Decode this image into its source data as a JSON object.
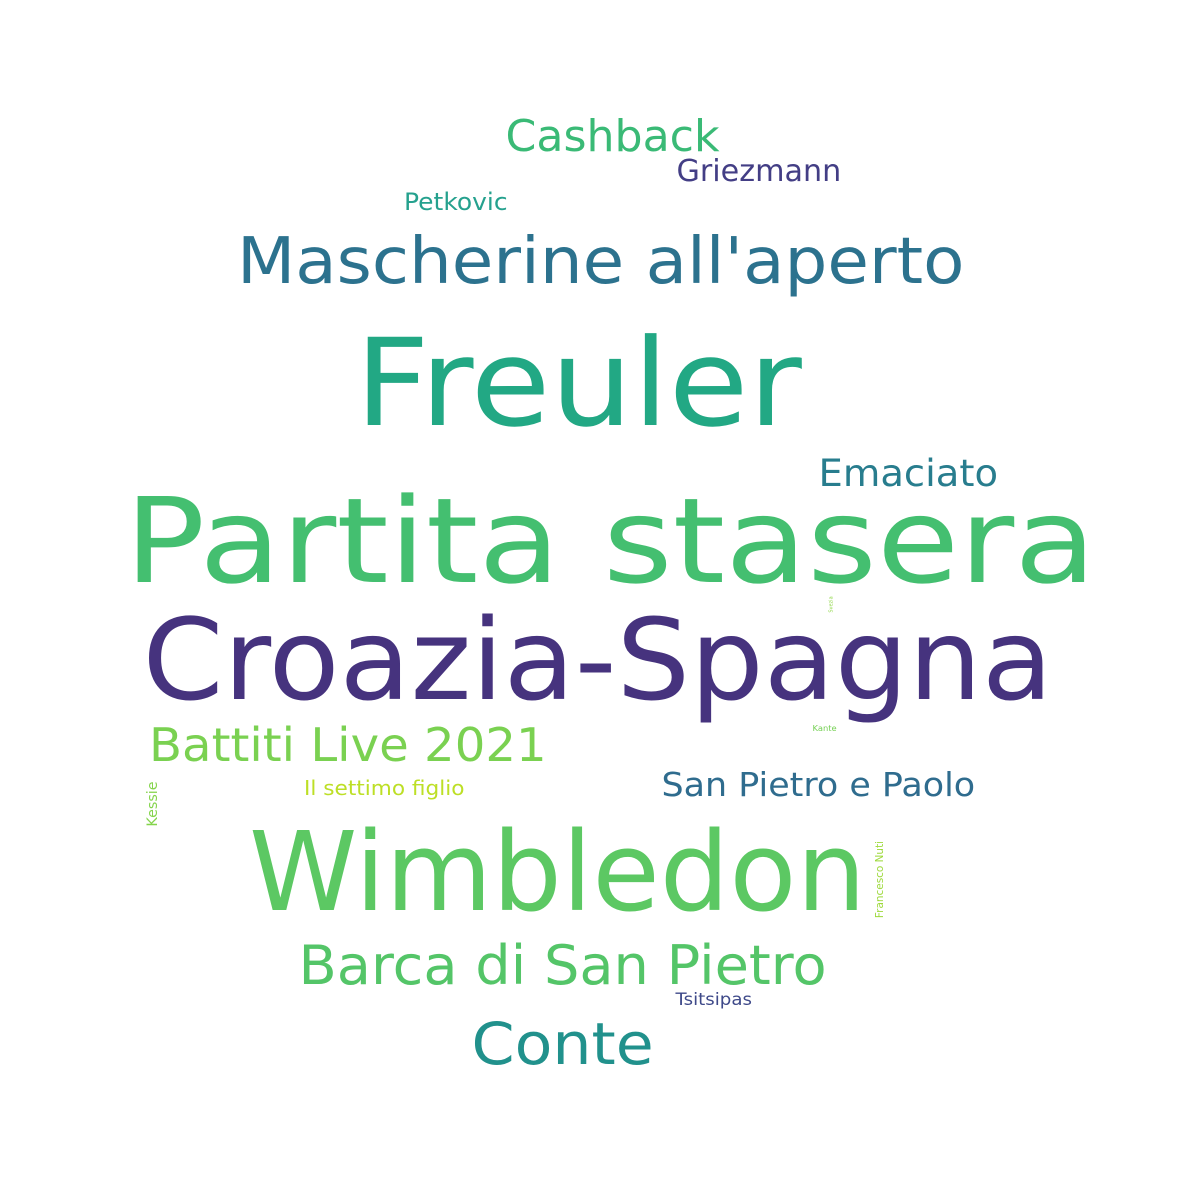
{
  "words": [
    {
      "text": "Partita stasera",
      "color": "#44bf70",
      "orientation": "horizontal"
    },
    {
      "text": "Croazia-Spagna",
      "color": "#46337e",
      "orientation": "horizontal"
    },
    {
      "text": "Freuler",
      "color": "#22a884",
      "orientation": "horizontal"
    },
    {
      "text": "Wimbledon",
      "color": "#5cc863",
      "orientation": "horizontal"
    },
    {
      "text": "Mascherine all'aperto",
      "color": "#2c728e",
      "orientation": "horizontal"
    },
    {
      "text": "Barca di San Pietro",
      "color": "#54c568",
      "orientation": "horizontal"
    },
    {
      "text": "Conte",
      "color": "#21918c",
      "orientation": "horizontal"
    },
    {
      "text": "Battiti Live 2021",
      "color": "#7ad151",
      "orientation": "horizontal"
    },
    {
      "text": "Cashback",
      "color": "#3aba76",
      "orientation": "horizontal"
    },
    {
      "text": "Emaciato",
      "color": "#287d8e",
      "orientation": "horizontal"
    },
    {
      "text": "San Pietro e Paolo",
      "color": "#2f6c8e",
      "orientation": "horizontal"
    },
    {
      "text": "Griezmann",
      "color": "#433e85",
      "orientation": "horizontal"
    },
    {
      "text": "Petkovic",
      "color": "#25a18e",
      "orientation": "horizontal"
    },
    {
      "text": "Il settimo figlio",
      "color": "#bddf26",
      "orientation": "horizontal"
    },
    {
      "text": "Tsitsipas",
      "color": "#3e4989",
      "orientation": "horizontal"
    },
    {
      "text": "Kessie",
      "color": "#84d44b",
      "orientation": "vertical"
    },
    {
      "text": "Francesco Nuti",
      "color": "#9dd93b",
      "orientation": "vertical"
    },
    {
      "text": "Kante",
      "color": "#75d054",
      "orientation": "horizontal"
    },
    {
      "text": "Svezia",
      "color": "#8ed645",
      "orientation": "vertical"
    }
  ]
}
